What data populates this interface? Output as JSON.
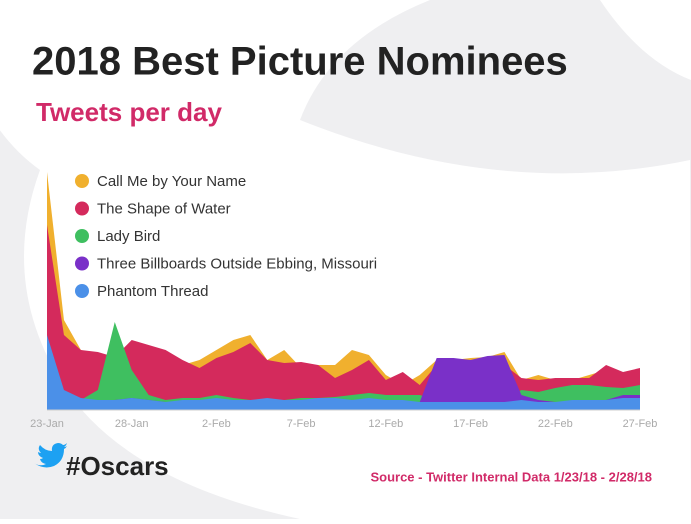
{
  "chart_data": {
    "type": "area",
    "title": "2018 Best Picture Nominees",
    "subtitle": "Tweets per day",
    "categories": [
      "23-Jan",
      null,
      null,
      null,
      null,
      "28-Jan",
      null,
      null,
      null,
      null,
      "2-Feb",
      null,
      null,
      null,
      null,
      "7-Feb",
      null,
      null,
      null,
      null,
      "12-Feb",
      null,
      null,
      null,
      null,
      "17-Feb",
      null,
      null,
      null,
      null,
      "22-Feb",
      null,
      null,
      null,
      null,
      "27-Feb"
    ],
    "series": [
      {
        "name": "Call Me by Your Name",
        "color": "#f0b02e",
        "values": [
          238,
          90,
          60,
          55,
          50,
          65,
          60,
          55,
          45,
          50,
          60,
          70,
          75,
          50,
          60,
          42,
          45,
          45,
          60,
          55,
          35,
          25,
          35,
          50,
          50,
          52,
          53,
          58,
          30,
          35,
          30,
          30,
          35,
          40,
          35,
          40
        ]
      },
      {
        "name": "The Shape of Water",
        "color": "#d42a5c",
        "values": [
          185,
          75,
          60,
          58,
          53,
          70,
          65,
          60,
          50,
          42,
          52,
          58,
          67,
          50,
          47,
          48,
          45,
          32,
          40,
          50,
          30,
          38,
          25,
          45,
          48,
          50,
          48,
          45,
          32,
          30,
          32,
          32,
          32,
          45,
          38,
          42
        ]
      },
      {
        "name": "Lady Bird",
        "color": "#3fbf60",
        "values": [
          15,
          15,
          10,
          20,
          88,
          40,
          15,
          10,
          12,
          12,
          15,
          12,
          10,
          10,
          10,
          12,
          12,
          13,
          15,
          17,
          15,
          15,
          15,
          10,
          10,
          10,
          10,
          10,
          20,
          18,
          22,
          25,
          25,
          23,
          22,
          25
        ]
      },
      {
        "name": "Three Billboards Outside Ebbing, Missouri",
        "color": "#7a30c8",
        "values": [
          15,
          15,
          10,
          10,
          10,
          12,
          10,
          8,
          8,
          8,
          8,
          8,
          8,
          8,
          8,
          8,
          8,
          8,
          8,
          8,
          8,
          8,
          8,
          52,
          52,
          50,
          54,
          55,
          15,
          10,
          8,
          8,
          8,
          10,
          15,
          15
        ]
      },
      {
        "name": "Phantom Thread",
        "color": "#4b90e8",
        "values": [
          75,
          20,
          12,
          10,
          10,
          12,
          10,
          8,
          10,
          10,
          12,
          10,
          10,
          12,
          10,
          10,
          12,
          12,
          10,
          12,
          10,
          10,
          8,
          8,
          8,
          8,
          8,
          8,
          10,
          8,
          8,
          10,
          10,
          10,
          12,
          12
        ]
      }
    ]
  },
  "footer": {
    "hashtag": "#Oscars",
    "source": "Source - Twitter Internal Data 1/23/18 - 2/28/18"
  }
}
